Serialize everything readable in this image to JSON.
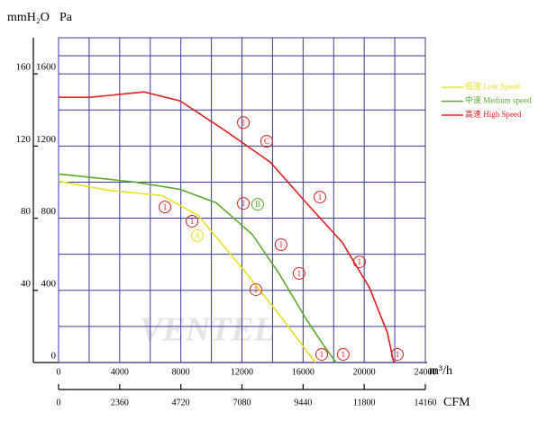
{
  "chart_data": {
    "type": "line",
    "y_label": "mmH₂O",
    "y_label2": "Pa",
    "x_label": "m³/h",
    "x2_label": "CFM",
    "watermark": "VENTEL",
    "xlim": [
      0,
      24000
    ],
    "xticks": [
      0,
      4000,
      8000,
      12000,
      16000,
      20000,
      24000
    ],
    "x2lim": [
      0,
      14160
    ],
    "x2ticks": [
      0,
      2360,
      4720,
      7080,
      9440,
      11800,
      14160
    ],
    "ylim": [
      0,
      1800
    ],
    "yticks": [
      0,
      400,
      800,
      1200,
      1600
    ],
    "y2lim": [
      0,
      180
    ],
    "y2ticks": [
      40,
      80,
      120,
      160
    ],
    "grid": true,
    "series": [
      {
        "name": "低速 Low Speed",
        "color": "#e6e01e",
        "x": [
          0,
          3240,
          6780,
          9140,
          12090,
          14450,
          16800
        ],
        "values": [
          1005,
          955,
          925,
          815,
          515,
          265,
          0
        ]
      },
      {
        "name": "中速 Medium speed",
        "color": "#5aaa28",
        "x": [
          0,
          5010,
          7960,
          10320,
          12680,
          14450,
          16210,
          17390,
          18160
        ],
        "values": [
          1045,
          1000,
          960,
          885,
          710,
          490,
          240,
          90,
          0
        ]
      },
      {
        "name": "高速 High Speed",
        "color": "#e01e1e",
        "x": [
          0,
          2060,
          5600,
          7960,
          10910,
          13860,
          16210,
          18570,
          20340,
          21520,
          21930
        ],
        "values": [
          1470,
          1470,
          1500,
          1450,
          1285,
          1110,
          885,
          665,
          415,
          165,
          0
        ]
      }
    ],
    "markers": [
      {
        "label": "1",
        "x": 12090,
        "y": 1330,
        "color": "#e01e1e"
      },
      {
        "label": "C",
        "x": 13620,
        "y": 1226,
        "color": "#e01e1e"
      },
      {
        "label": "1",
        "x": 17100,
        "y": 917,
        "color": "#e01e1e"
      },
      {
        "label": "1",
        "x": 19690,
        "y": 558,
        "color": "#e01e1e"
      },
      {
        "label": "1",
        "x": 22170,
        "y": 45,
        "color": "#e01e1e"
      },
      {
        "label": "1",
        "x": 6960,
        "y": 862,
        "color": "#e01e1e"
      },
      {
        "label": "1",
        "x": 8730,
        "y": 783,
        "color": "#e01e1e"
      },
      {
        "label": "1",
        "x": 12090,
        "y": 882,
        "color": "#e01e1e"
      },
      {
        "label": "B",
        "x": 13030,
        "y": 877,
        "color": "#5aaa28"
      },
      {
        "label": "A",
        "x": 9080,
        "y": 703,
        "color": "#e6e01e"
      },
      {
        "label": "1",
        "x": 14560,
        "y": 653,
        "color": "#e01e1e"
      },
      {
        "label": "1",
        "x": 15740,
        "y": 494,
        "color": "#e01e1e"
      },
      {
        "label": "1",
        "x": 12910,
        "y": 404,
        "color": "#e01e1e"
      },
      {
        "label": "1",
        "x": 17220,
        "y": 45,
        "color": "#e01e1e"
      },
      {
        "label": "1",
        "x": 18630,
        "y": 45,
        "color": "#e01e1e"
      }
    ]
  }
}
